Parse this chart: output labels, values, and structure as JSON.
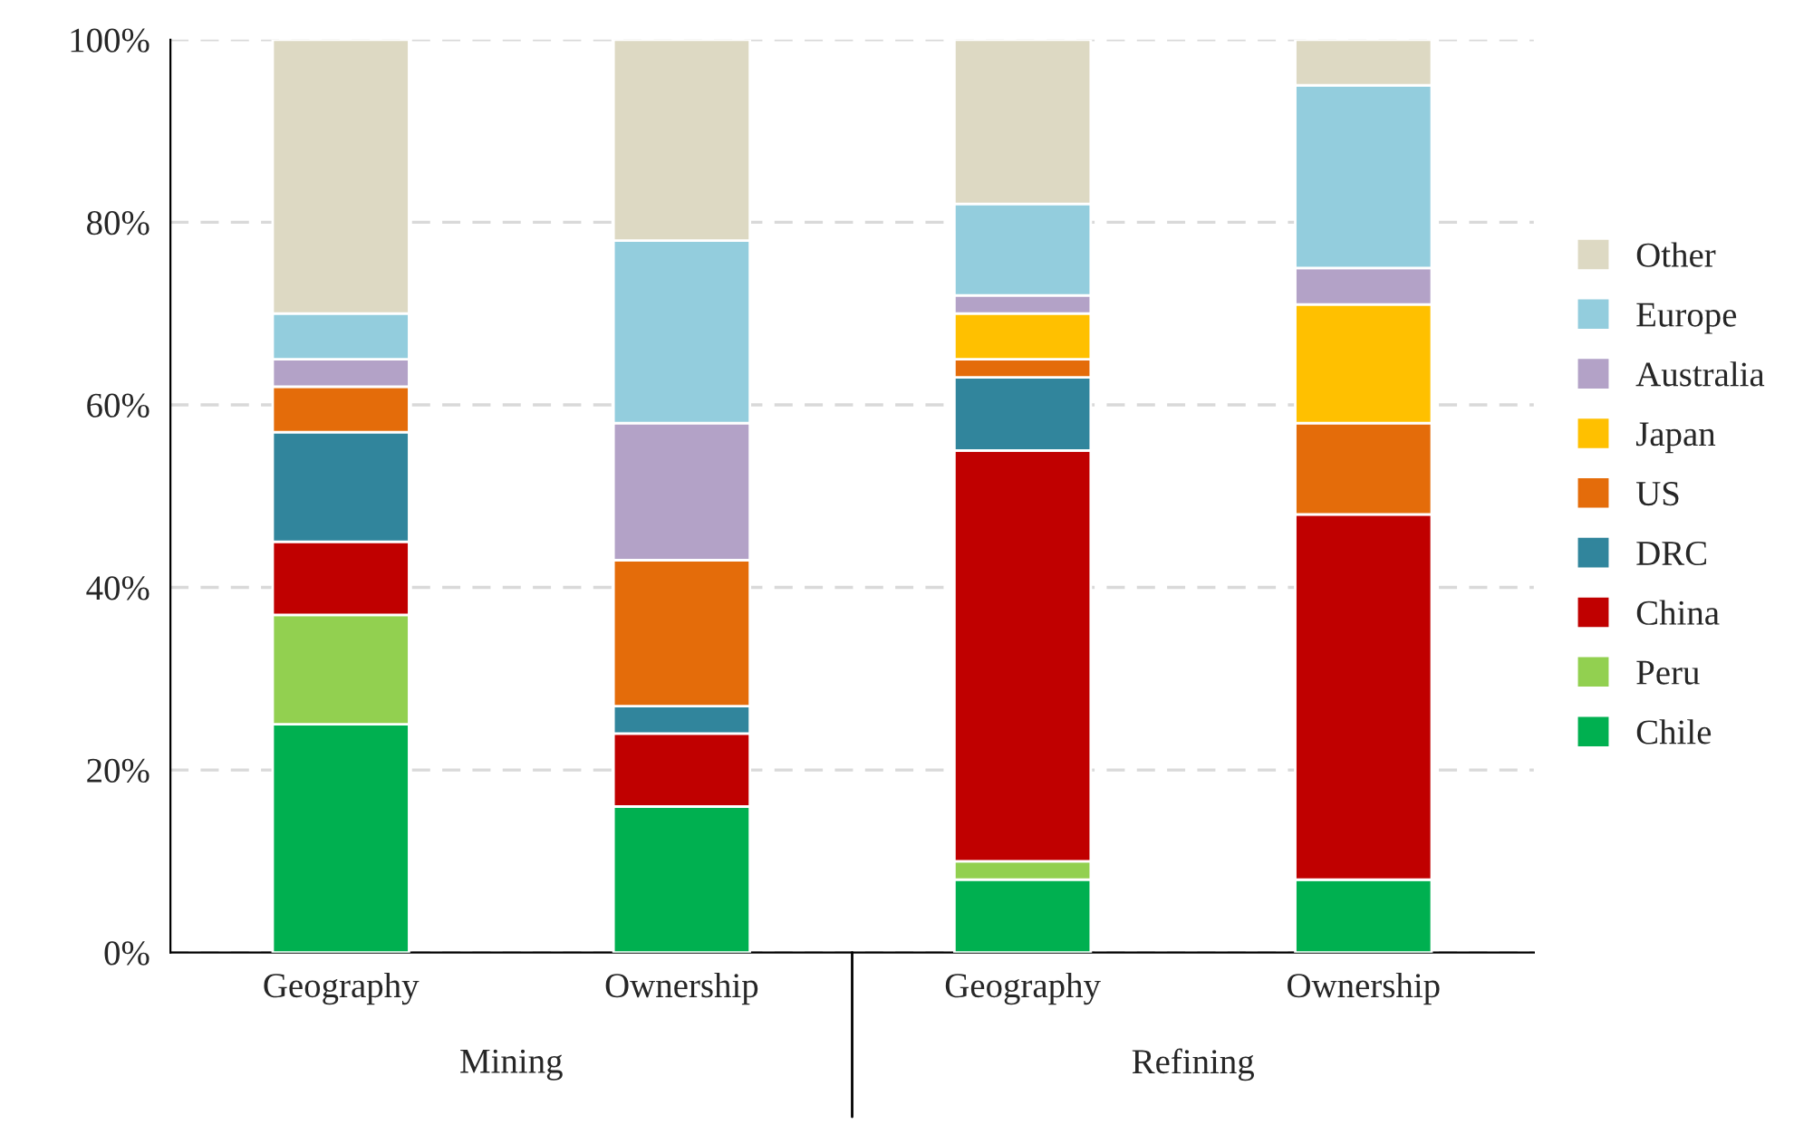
{
  "chart_data": {
    "type": "bar",
    "stacked": true,
    "categories": [
      "Geography",
      "Ownership",
      "Geography",
      "Ownership"
    ],
    "annotations": [
      "Mining",
      "Refining"
    ],
    "series": [
      {
        "name": "Chile",
        "color": "#00b050",
        "values": [
          25,
          16,
          8,
          8
        ]
      },
      {
        "name": "Peru",
        "color": "#92d050",
        "values": [
          12,
          0,
          2,
          0
        ]
      },
      {
        "name": "China",
        "color": "#c00000",
        "values": [
          8,
          8,
          45,
          40
        ]
      },
      {
        "name": "DRC",
        "color": "#31859c",
        "values": [
          12,
          3,
          8,
          0
        ]
      },
      {
        "name": "US",
        "color": "#e46c0a",
        "values": [
          5,
          16,
          2,
          10
        ]
      },
      {
        "name": "Japan",
        "color": "#ffc000",
        "values": [
          0,
          0,
          5,
          13
        ]
      },
      {
        "name": "Australia",
        "color": "#b3a2c7",
        "values": [
          3,
          15,
          2,
          4
        ]
      },
      {
        "name": "Europe",
        "color": "#93cddd",
        "values": [
          5,
          20,
          10,
          20
        ]
      },
      {
        "name": "Other",
        "color": "#ddd9c3",
        "values": [
          30,
          22,
          18,
          5
        ]
      }
    ],
    "ylim": [
      0,
      100
    ],
    "yticks": [
      {
        "value": 0,
        "label": "0%"
      },
      {
        "value": 20,
        "label": "20%"
      },
      {
        "value": 40,
        "label": "40%"
      },
      {
        "value": 60,
        "label": "60%"
      },
      {
        "value": 80,
        "label": "80%"
      },
      {
        "value": 100,
        "label": "100%"
      }
    ],
    "grid": "y",
    "legend": "right"
  }
}
